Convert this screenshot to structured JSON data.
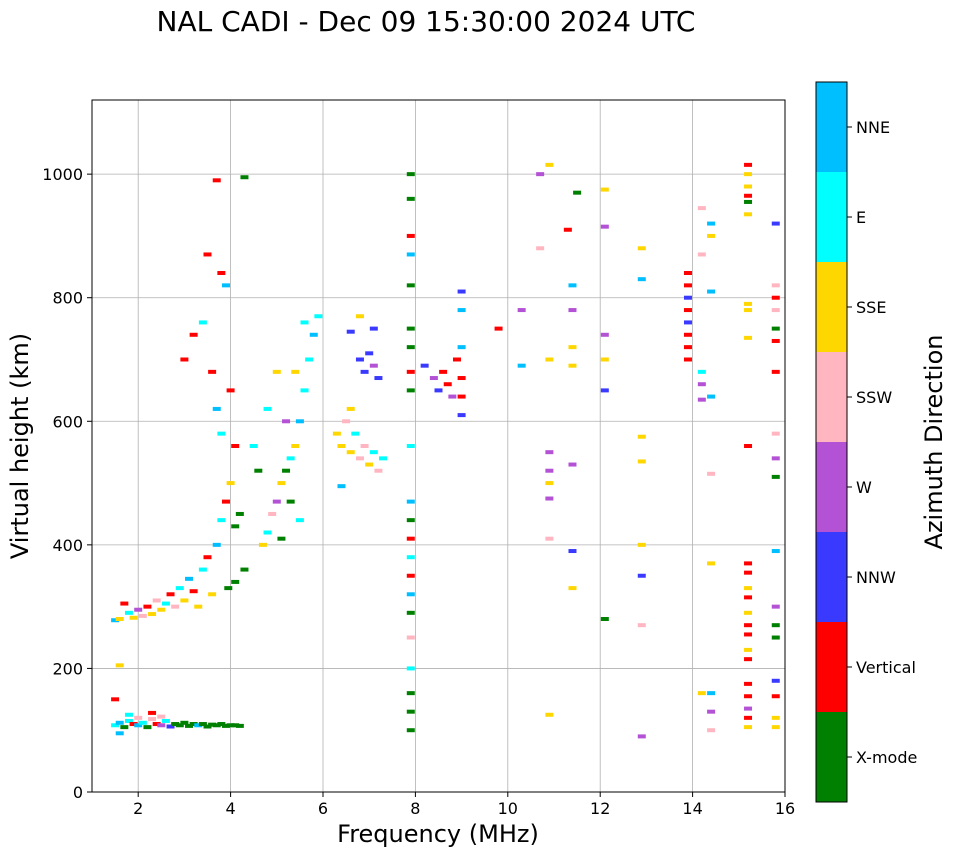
{
  "chart_data": {
    "type": "scatter",
    "title": "NAL CADI - Dec 09 15:30:00 2024 UTC",
    "xlabel": "Frequency (MHz)",
    "ylabel": "Virtual height (km)",
    "xlim": [
      1,
      16
    ],
    "ylim": [
      0,
      1120
    ],
    "xticks": [
      2,
      4,
      6,
      8,
      10,
      12,
      14,
      16
    ],
    "yticks": [
      0,
      200,
      400,
      600,
      800,
      1000
    ],
    "grid": true,
    "colorbar": {
      "label": "Azimuth Direction",
      "categories": [
        {
          "name": "X-mode",
          "color": "#008000"
        },
        {
          "name": "Vertical",
          "color": "#ff0000"
        },
        {
          "name": "NNW",
          "color": "#3a3aff"
        },
        {
          "name": "W",
          "color": "#b452d6"
        },
        {
          "name": "SSW",
          "color": "#ffb6c1"
        },
        {
          "name": "SSE",
          "color": "#ffd700"
        },
        {
          "name": "E",
          "color": "#00ffff"
        },
        {
          "name": "NNE",
          "color": "#00bfff"
        }
      ]
    },
    "points": [
      [
        1.5,
        108,
        "E"
      ],
      [
        1.6,
        112,
        "NNE"
      ],
      [
        1.7,
        105,
        "X-mode"
      ],
      [
        1.8,
        115,
        "E"
      ],
      [
        1.9,
        110,
        "Vertical"
      ],
      [
        2.0,
        108,
        "NNE"
      ],
      [
        2.1,
        112,
        "E"
      ],
      [
        2.2,
        105,
        "X-mode"
      ],
      [
        2.3,
        118,
        "SSW"
      ],
      [
        2.4,
        110,
        "Vertical"
      ],
      [
        2.5,
        108,
        "W"
      ],
      [
        2.6,
        115,
        "E"
      ],
      [
        2.7,
        106,
        "NNW"
      ],
      [
        2.8,
        110,
        "X-mode"
      ],
      [
        2.9,
        108,
        "X-mode"
      ],
      [
        3.0,
        112,
        "X-mode"
      ],
      [
        3.1,
        107,
        "X-mode"
      ],
      [
        3.2,
        110,
        "X-mode"
      ],
      [
        3.3,
        108,
        "NNE"
      ],
      [
        3.4,
        110,
        "X-mode"
      ],
      [
        3.5,
        106,
        "X-mode"
      ],
      [
        3.6,
        109,
        "X-mode"
      ],
      [
        3.7,
        108,
        "X-mode"
      ],
      [
        3.8,
        110,
        "X-mode"
      ],
      [
        3.9,
        107,
        "X-mode"
      ],
      [
        4.0,
        108,
        "X-mode"
      ],
      [
        4.1,
        108,
        "X-mode"
      ],
      [
        4.2,
        107,
        "X-mode"
      ],
      [
        1.6,
        95,
        "NNE"
      ],
      [
        1.8,
        125,
        "E"
      ],
      [
        2.0,
        120,
        "SSW"
      ],
      [
        2.3,
        128,
        "Vertical"
      ],
      [
        2.5,
        122,
        "SSW"
      ],
      [
        1.5,
        150,
        "Vertical"
      ],
      [
        1.6,
        205,
        "SSE"
      ],
      [
        1.5,
        278,
        "NNE"
      ],
      [
        1.6,
        280,
        "SSE"
      ],
      [
        1.7,
        305,
        "Vertical"
      ],
      [
        1.8,
        290,
        "E"
      ],
      [
        1.9,
        282,
        "SSE"
      ],
      [
        2.0,
        295,
        "W"
      ],
      [
        2.1,
        285,
        "SSW"
      ],
      [
        2.2,
        300,
        "Vertical"
      ],
      [
        2.3,
        288,
        "SSE"
      ],
      [
        2.4,
        310,
        "SSW"
      ],
      [
        2.5,
        295,
        "SSE"
      ],
      [
        2.6,
        305,
        "E"
      ],
      [
        2.7,
        320,
        "Vertical"
      ],
      [
        2.8,
        300,
        "SSW"
      ],
      [
        2.9,
        330,
        "E"
      ],
      [
        3.0,
        310,
        "SSE"
      ],
      [
        3.1,
        345,
        "NNE"
      ],
      [
        3.2,
        325,
        "Vertical"
      ],
      [
        3.3,
        300,
        "SSE"
      ],
      [
        3.4,
        360,
        "E"
      ],
      [
        3.5,
        380,
        "Vertical"
      ],
      [
        3.6,
        320,
        "SSE"
      ],
      [
        3.7,
        400,
        "NNE"
      ],
      [
        3.8,
        440,
        "E"
      ],
      [
        3.9,
        470,
        "Vertical"
      ],
      [
        4.0,
        500,
        "SSE"
      ],
      [
        4.1,
        430,
        "X-mode"
      ],
      [
        4.2,
        450,
        "X-mode"
      ],
      [
        3.95,
        330,
        "X-mode"
      ],
      [
        4.1,
        340,
        "X-mode"
      ],
      [
        4.3,
        360,
        "X-mode"
      ],
      [
        3.0,
        700,
        "Vertical"
      ],
      [
        3.2,
        740,
        "Vertical"
      ],
      [
        3.4,
        760,
        "E"
      ],
      [
        3.6,
        680,
        "Vertical"
      ],
      [
        3.7,
        620,
        "NNE"
      ],
      [
        3.8,
        580,
        "E"
      ],
      [
        3.9,
        820,
        "NNE"
      ],
      [
        3.7,
        990,
        "Vertical"
      ],
      [
        4.3,
        995,
        "X-mode"
      ],
      [
        3.5,
        870,
        "Vertical"
      ],
      [
        3.8,
        840,
        "Vertical"
      ],
      [
        4.0,
        650,
        "Vertical"
      ],
      [
        4.1,
        560,
        "Vertical"
      ],
      [
        4.7,
        400,
        "SSE"
      ],
      [
        4.8,
        420,
        "E"
      ],
      [
        4.9,
        450,
        "SSW"
      ],
      [
        5.0,
        470,
        "W"
      ],
      [
        5.1,
        500,
        "SSE"
      ],
      [
        5.2,
        520,
        "X-mode"
      ],
      [
        5.3,
        540,
        "E"
      ],
      [
        5.4,
        560,
        "SSE"
      ],
      [
        5.5,
        600,
        "NNE"
      ],
      [
        5.6,
        650,
        "E"
      ],
      [
        5.7,
        700,
        "E"
      ],
      [
        5.8,
        740,
        "NNE"
      ],
      [
        5.9,
        770,
        "E"
      ],
      [
        4.8,
        620,
        "E"
      ],
      [
        5.0,
        680,
        "SSE"
      ],
      [
        5.2,
        600,
        "W"
      ],
      [
        5.4,
        680,
        "SSE"
      ],
      [
        5.6,
        760,
        "E"
      ],
      [
        4.6,
        520,
        "X-mode"
      ],
      [
        4.5,
        560,
        "E"
      ],
      [
        5.1,
        410,
        "X-mode"
      ],
      [
        5.3,
        470,
        "X-mode"
      ],
      [
        5.5,
        440,
        "E"
      ],
      [
        6.3,
        580,
        "SSE"
      ],
      [
        6.4,
        560,
        "SSE"
      ],
      [
        6.5,
        600,
        "SSW"
      ],
      [
        6.6,
        550,
        "SSE"
      ],
      [
        6.7,
        580,
        "E"
      ],
      [
        6.8,
        540,
        "SSW"
      ],
      [
        6.9,
        560,
        "SSW"
      ],
      [
        7.0,
        530,
        "SSE"
      ],
      [
        7.1,
        550,
        "E"
      ],
      [
        7.2,
        520,
        "SSW"
      ],
      [
        7.3,
        540,
        "E"
      ],
      [
        6.4,
        495,
        "NNE"
      ],
      [
        6.6,
        620,
        "SSE"
      ],
      [
        6.8,
        700,
        "NNW"
      ],
      [
        6.9,
        680,
        "NNW"
      ],
      [
        7.0,
        710,
        "NNW"
      ],
      [
        7.1,
        690,
        "W"
      ],
      [
        7.2,
        670,
        "NNW"
      ],
      [
        6.6,
        745,
        "NNW"
      ],
      [
        6.8,
        770,
        "SSE"
      ],
      [
        7.1,
        750,
        "NNW"
      ],
      [
        7.9,
        1000,
        "X-mode"
      ],
      [
        7.9,
        960,
        "X-mode"
      ],
      [
        7.9,
        900,
        "Vertical"
      ],
      [
        7.9,
        870,
        "NNE"
      ],
      [
        7.9,
        820,
        "X-mode"
      ],
      [
        7.9,
        750,
        "X-mode"
      ],
      [
        7.9,
        720,
        "X-mode"
      ],
      [
        7.9,
        680,
        "Vertical"
      ],
      [
        7.9,
        650,
        "X-mode"
      ],
      [
        7.9,
        560,
        "E"
      ],
      [
        7.9,
        470,
        "NNE"
      ],
      [
        7.9,
        440,
        "X-mode"
      ],
      [
        7.9,
        410,
        "Vertical"
      ],
      [
        7.9,
        380,
        "E"
      ],
      [
        7.9,
        350,
        "Vertical"
      ],
      [
        7.9,
        320,
        "NNE"
      ],
      [
        7.9,
        290,
        "X-mode"
      ],
      [
        7.9,
        250,
        "SSW"
      ],
      [
        7.9,
        200,
        "E"
      ],
      [
        7.9,
        160,
        "X-mode"
      ],
      [
        7.9,
        130,
        "X-mode"
      ],
      [
        7.9,
        100,
        "X-mode"
      ],
      [
        8.2,
        690,
        "NNW"
      ],
      [
        8.4,
        670,
        "W"
      ],
      [
        8.5,
        650,
        "NNW"
      ],
      [
        8.6,
        680,
        "Vertical"
      ],
      [
        8.7,
        660,
        "Vertical"
      ],
      [
        8.8,
        640,
        "W"
      ],
      [
        8.9,
        700,
        "Vertical"
      ],
      [
        9.0,
        670,
        "Vertical"
      ],
      [
        9.0,
        640,
        "Vertical"
      ],
      [
        9.0,
        720,
        "NNE"
      ],
      [
        9.0,
        780,
        "NNE"
      ],
      [
        9.0,
        810,
        "NNW"
      ],
      [
        9.0,
        610,
        "NNW"
      ],
      [
        9.8,
        750,
        "Vertical"
      ],
      [
        10.3,
        690,
        "NNE"
      ],
      [
        10.3,
        780,
        "W"
      ],
      [
        10.7,
        1000,
        "W"
      ],
      [
        10.7,
        880,
        "SSW"
      ],
      [
        10.9,
        1015,
        "SSE"
      ],
      [
        10.9,
        700,
        "SSE"
      ],
      [
        10.9,
        550,
        "W"
      ],
      [
        10.9,
        520,
        "W"
      ],
      [
        10.9,
        500,
        "SSE"
      ],
      [
        10.9,
        475,
        "W"
      ],
      [
        10.9,
        410,
        "SSW"
      ],
      [
        10.9,
        125,
        "SSE"
      ],
      [
        11.3,
        910,
        "Vertical"
      ],
      [
        11.5,
        970,
        "X-mode"
      ],
      [
        11.4,
        820,
        "NNE"
      ],
      [
        11.4,
        780,
        "W"
      ],
      [
        11.4,
        720,
        "SSE"
      ],
      [
        11.4,
        690,
        "SSE"
      ],
      [
        11.4,
        530,
        "W"
      ],
      [
        11.4,
        390,
        "NNW"
      ],
      [
        11.4,
        330,
        "SSE"
      ],
      [
        12.1,
        975,
        "SSE"
      ],
      [
        12.1,
        915,
        "W"
      ],
      [
        12.1,
        740,
        "W"
      ],
      [
        12.1,
        700,
        "SSE"
      ],
      [
        12.1,
        650,
        "NNW"
      ],
      [
        12.1,
        280,
        "X-mode"
      ],
      [
        12.9,
        880,
        "SSE"
      ],
      [
        12.9,
        830,
        "NNE"
      ],
      [
        12.9,
        575,
        "SSE"
      ],
      [
        12.9,
        535,
        "SSE"
      ],
      [
        12.9,
        400,
        "SSE"
      ],
      [
        12.9,
        350,
        "NNW"
      ],
      [
        12.9,
        270,
        "SSW"
      ],
      [
        12.9,
        90,
        "W"
      ],
      [
        13.9,
        840,
        "Vertical"
      ],
      [
        13.9,
        820,
        "Vertical"
      ],
      [
        13.9,
        800,
        "NNW"
      ],
      [
        13.9,
        780,
        "Vertical"
      ],
      [
        13.9,
        760,
        "NNW"
      ],
      [
        13.9,
        740,
        "Vertical"
      ],
      [
        13.9,
        720,
        "Vertical"
      ],
      [
        13.9,
        700,
        "Vertical"
      ],
      [
        14.2,
        945,
        "SSW"
      ],
      [
        14.2,
        870,
        "SSW"
      ],
      [
        14.2,
        680,
        "E"
      ],
      [
        14.2,
        660,
        "W"
      ],
      [
        14.2,
        635,
        "W"
      ],
      [
        14.2,
        160,
        "SSE"
      ],
      [
        14.4,
        920,
        "NNE"
      ],
      [
        14.4,
        900,
        "SSE"
      ],
      [
        14.4,
        810,
        "NNE"
      ],
      [
        14.4,
        640,
        "NNE"
      ],
      [
        14.4,
        515,
        "SSW"
      ],
      [
        14.4,
        370,
        "SSE"
      ],
      [
        14.4,
        160,
        "NNE"
      ],
      [
        14.4,
        130,
        "W"
      ],
      [
        14.4,
        100,
        "SSW"
      ],
      [
        15.2,
        1015,
        "Vertical"
      ],
      [
        15.2,
        1000,
        "SSE"
      ],
      [
        15.2,
        980,
        "SSE"
      ],
      [
        15.2,
        965,
        "Vertical"
      ],
      [
        15.2,
        955,
        "X-mode"
      ],
      [
        15.2,
        935,
        "SSE"
      ],
      [
        15.2,
        790,
        "SSE"
      ],
      [
        15.2,
        780,
        "SSE"
      ],
      [
        15.2,
        735,
        "SSE"
      ],
      [
        15.2,
        560,
        "Vertical"
      ],
      [
        15.2,
        370,
        "Vertical"
      ],
      [
        15.2,
        355,
        "Vertical"
      ],
      [
        15.2,
        330,
        "SSE"
      ],
      [
        15.2,
        315,
        "Vertical"
      ],
      [
        15.2,
        290,
        "SSE"
      ],
      [
        15.2,
        270,
        "Vertical"
      ],
      [
        15.2,
        255,
        "Vertical"
      ],
      [
        15.2,
        230,
        "SSE"
      ],
      [
        15.2,
        215,
        "Vertical"
      ],
      [
        15.2,
        175,
        "Vertical"
      ],
      [
        15.2,
        155,
        "Vertical"
      ],
      [
        15.2,
        135,
        "W"
      ],
      [
        15.2,
        120,
        "Vertical"
      ],
      [
        15.2,
        105,
        "SSE"
      ],
      [
        15.8,
        920,
        "NNW"
      ],
      [
        15.8,
        820,
        "SSW"
      ],
      [
        15.8,
        800,
        "Vertical"
      ],
      [
        15.8,
        780,
        "SSW"
      ],
      [
        15.8,
        750,
        "X-mode"
      ],
      [
        15.8,
        730,
        "Vertical"
      ],
      [
        15.8,
        680,
        "Vertical"
      ],
      [
        15.8,
        580,
        "SSW"
      ],
      [
        15.8,
        540,
        "W"
      ],
      [
        15.8,
        510,
        "X-mode"
      ],
      [
        15.8,
        390,
        "NNE"
      ],
      [
        15.8,
        300,
        "W"
      ],
      [
        15.8,
        270,
        "X-mode"
      ],
      [
        15.8,
        250,
        "X-mode"
      ],
      [
        15.8,
        180,
        "NNW"
      ],
      [
        15.8,
        155,
        "Vertical"
      ],
      [
        15.8,
        120,
        "SSE"
      ],
      [
        15.8,
        105,
        "SSE"
      ]
    ]
  }
}
